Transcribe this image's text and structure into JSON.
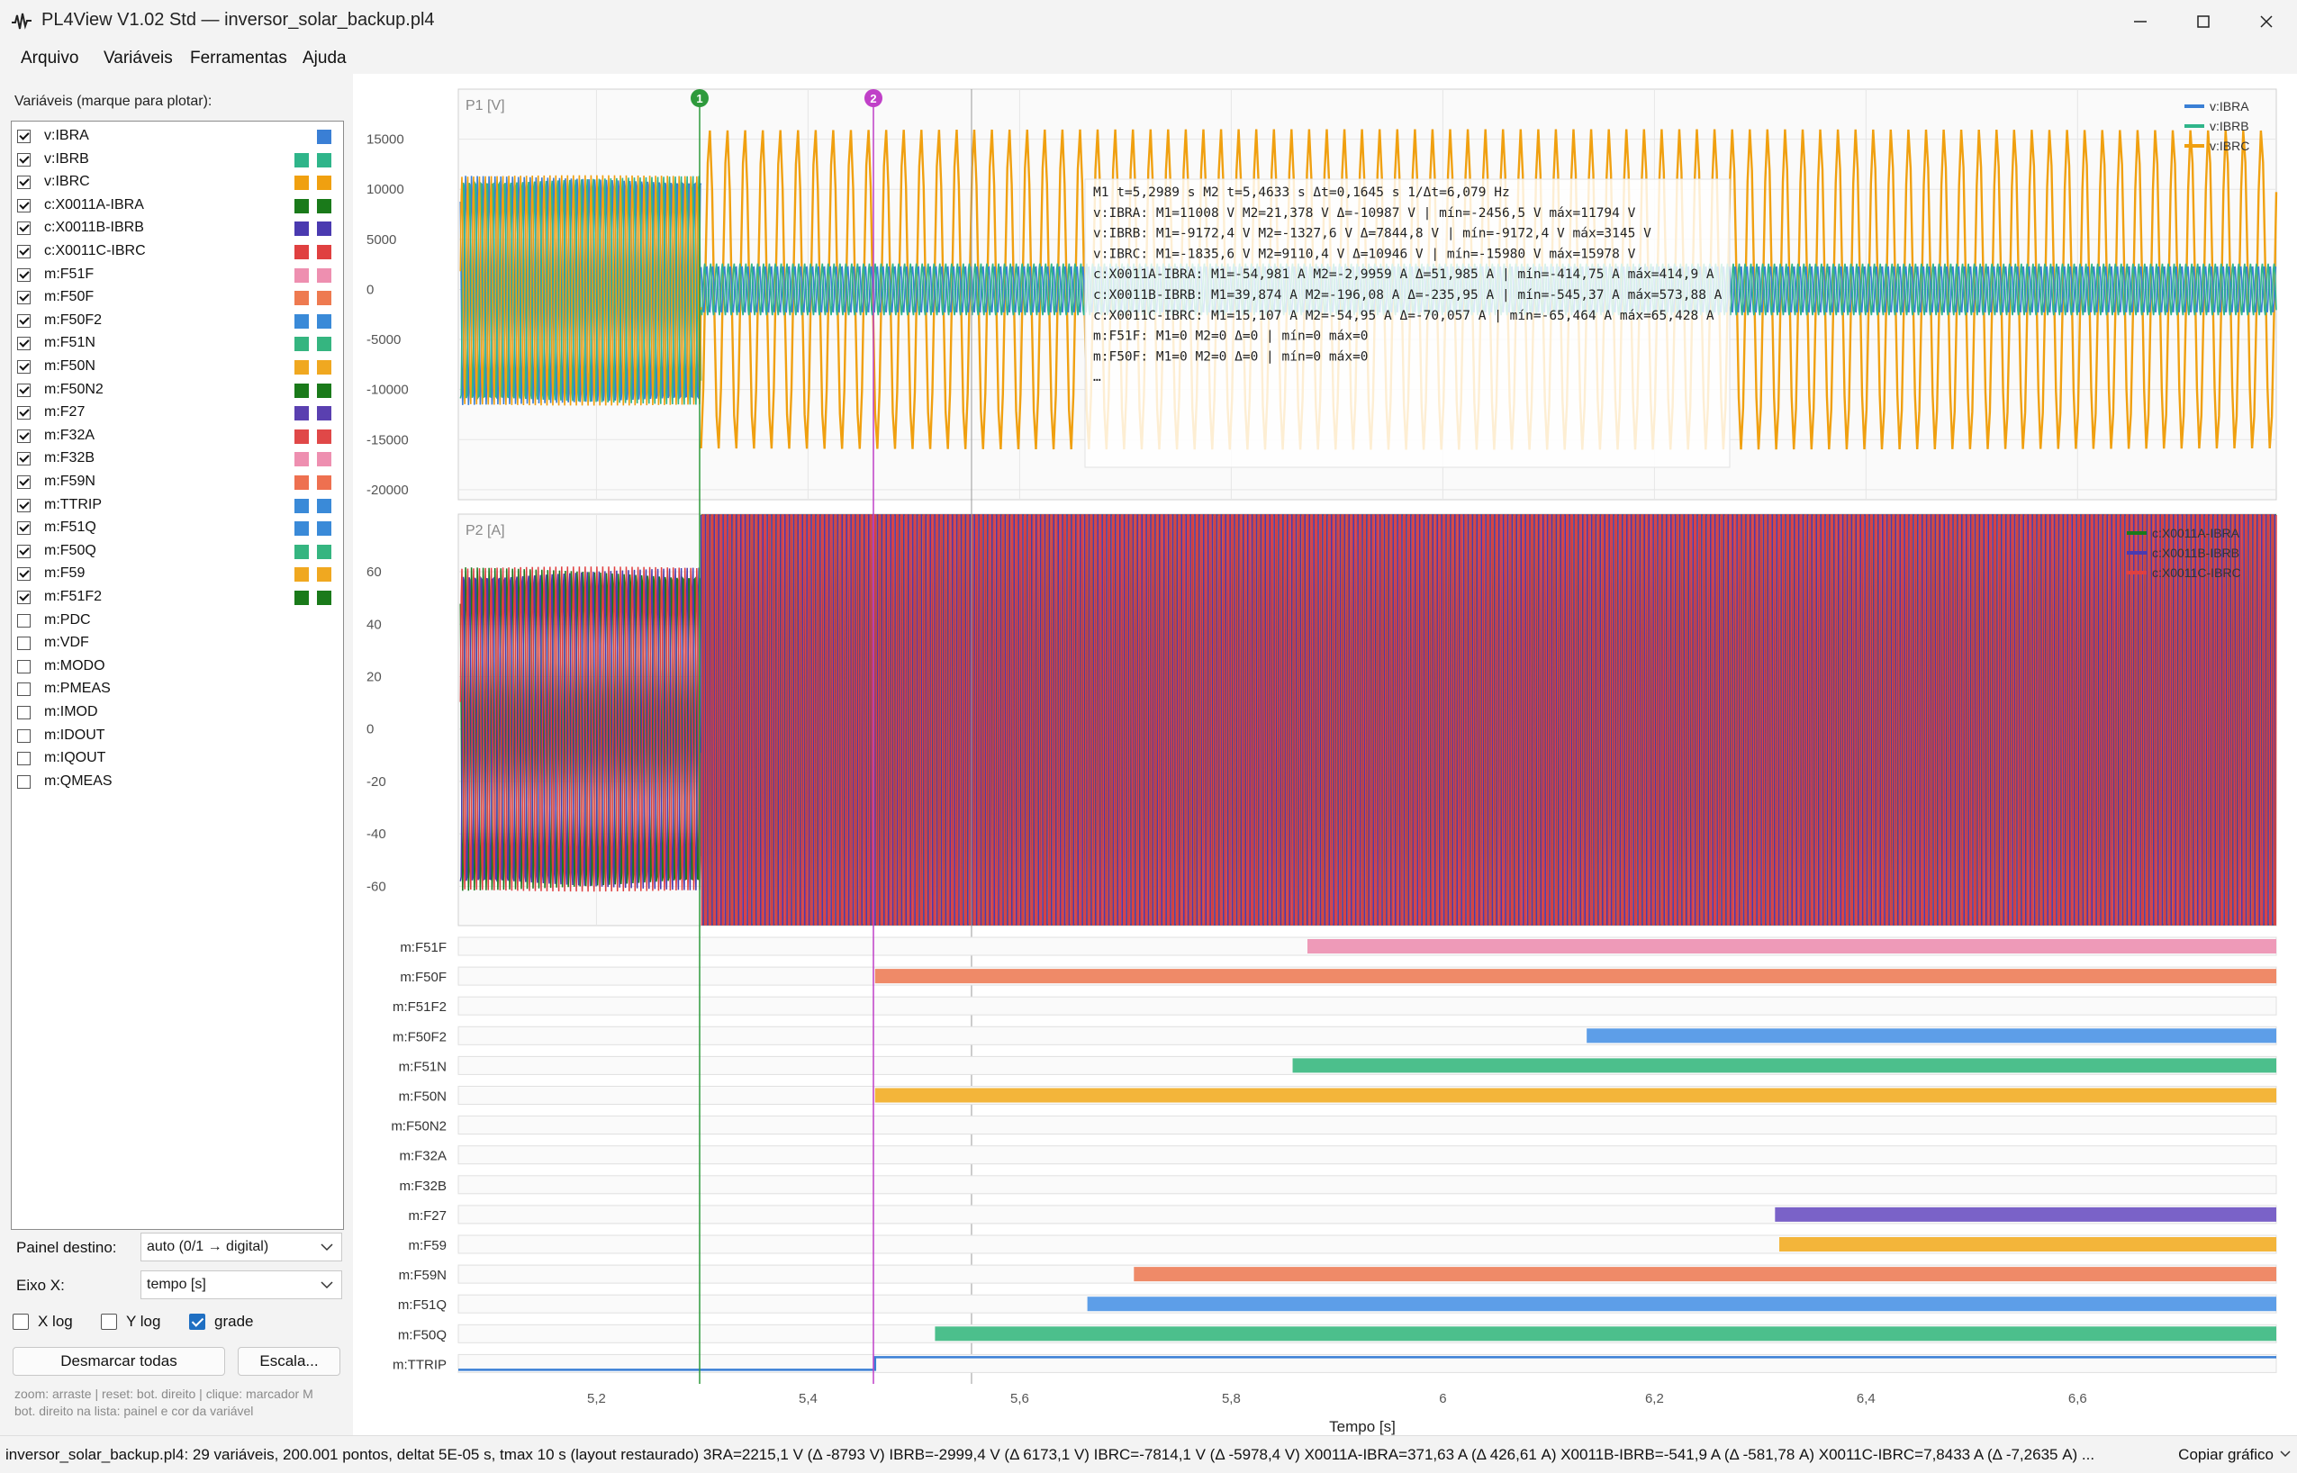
{
  "window": {
    "title": "PL4View V1.02 Std — inversor_solar_backup.pl4"
  },
  "menu": [
    "Arquivo",
    "Variáveis",
    "Ferramentas",
    "Ajuda"
  ],
  "sidebar": {
    "heading": "Variáveis (marque para plotar):",
    "variables": [
      {
        "name": "v:IBRA",
        "checked": true,
        "colors": [
          "#3a7fd5"
        ]
      },
      {
        "name": "v:IBRB",
        "checked": true,
        "colors": [
          "#2fb58a",
          "#2fb58a"
        ]
      },
      {
        "name": "v:IBRC",
        "checked": true,
        "colors": [
          "#f0a010",
          "#f0a010"
        ]
      },
      {
        "name": "c:X0011A-IBRA",
        "checked": true,
        "colors": [
          "#1a7a1a",
          "#1a7a1a"
        ]
      },
      {
        "name": "c:X0011B-IBRB",
        "checked": true,
        "colors": [
          "#4a3ab0",
          "#4a3ab0"
        ]
      },
      {
        "name": "c:X0011C-IBRC",
        "checked": true,
        "colors": [
          "#e04040",
          "#e04040"
        ]
      },
      {
        "name": "m:F51F",
        "checked": true,
        "colors": [
          "#ee8fb0",
          "#ee8fb0"
        ]
      },
      {
        "name": "m:F50F",
        "checked": true,
        "colors": [
          "#ee7a50",
          "#ee7a50"
        ]
      },
      {
        "name": "m:F50F2",
        "checked": true,
        "colors": [
          "#3a8ad8",
          "#3a8ad8"
        ]
      },
      {
        "name": "m:F51N",
        "checked": true,
        "colors": [
          "#35b580",
          "#35b580"
        ]
      },
      {
        "name": "m:F50N",
        "checked": true,
        "colors": [
          "#f0a820",
          "#f0a820"
        ]
      },
      {
        "name": "m:F50N2",
        "checked": true,
        "colors": [
          "#1a7a1a",
          "#1a7a1a"
        ]
      },
      {
        "name": "m:F27",
        "checked": true,
        "colors": [
          "#5a40b0",
          "#5a40b0"
        ]
      },
      {
        "name": "m:F32A",
        "checked": true,
        "colors": [
          "#e04848",
          "#e04848"
        ]
      },
      {
        "name": "m:F32B",
        "checked": true,
        "colors": [
          "#ee8fb0",
          "#ee8fb0"
        ]
      },
      {
        "name": "m:F59N",
        "checked": true,
        "colors": [
          "#ee7050",
          "#ee7050"
        ]
      },
      {
        "name": "m:TTRIP",
        "checked": true,
        "colors": [
          "#3a8ad8",
          "#3a8ad8"
        ]
      },
      {
        "name": "m:F51Q",
        "checked": true,
        "colors": [
          "#3a8ad8",
          "#3a8ad8"
        ]
      },
      {
        "name": "m:F50Q",
        "checked": true,
        "colors": [
          "#35b580",
          "#35b580"
        ]
      },
      {
        "name": "m:F59",
        "checked": true,
        "colors": [
          "#f0a820",
          "#f0a820"
        ]
      },
      {
        "name": "m:F51F2",
        "checked": true,
        "colors": [
          "#1a7a1a",
          "#1a7a1a"
        ]
      },
      {
        "name": "m:PDC",
        "checked": false,
        "colors": []
      },
      {
        "name": "m:VDF",
        "checked": false,
        "colors": []
      },
      {
        "name": "m:MODO",
        "checked": false,
        "colors": []
      },
      {
        "name": "m:PMEAS",
        "checked": false,
        "colors": []
      },
      {
        "name": "m:IMOD",
        "checked": false,
        "colors": []
      },
      {
        "name": "m:IDOUT",
        "checked": false,
        "colors": []
      },
      {
        "name": "m:IQOUT",
        "checked": false,
        "colors": []
      },
      {
        "name": "m:QMEAS",
        "checked": false,
        "colors": []
      }
    ],
    "painel_label": "Painel destino:",
    "painel_value": "auto (0/1 → digital)",
    "eixo_label": "Eixo X:",
    "eixo_value": "tempo [s]",
    "xlog_label": "X log",
    "ylog_label": "Y log",
    "grade_label": "grade",
    "xlog_checked": false,
    "ylog_checked": false,
    "grade_checked": true,
    "desmarcar_label": "Desmarcar todas",
    "escala_label": "Escala...",
    "hint_line1": "zoom: arraste | reset: bot. direito | clique: marcador M",
    "hint_line2": "bot. direito na lista: painel e cor da variável"
  },
  "plot": {
    "panel1": {
      "label": "P1 [V]",
      "yticks": [
        "15000",
        "10000",
        "5000",
        "0",
        "-5000",
        "-10000",
        "-15000",
        "-20000"
      ],
      "legend": [
        "v:IBRA",
        "v:IBRB",
        "v:IBRC"
      ]
    },
    "panel2": {
      "label": "P2 [A]",
      "yticks": [
        "60",
        "40",
        "20",
        "0",
        "-20",
        "-40",
        "-60"
      ],
      "legend": [
        "c:X0011A-IBRA",
        "c:X0011B-IBRB",
        "c:X0011C-IBRC"
      ]
    },
    "digital_rows": [
      {
        "name": "m:F51F",
        "start": 5.872,
        "color": "#ee9ab8"
      },
      {
        "name": "m:F50F",
        "start": 5.4633,
        "color": "#ef8a68"
      },
      {
        "name": "m:F51F2",
        "start": null,
        "color": "#1a7a1a"
      },
      {
        "name": "m:F50F2",
        "start": 6.136,
        "color": "#5d9ee8"
      },
      {
        "name": "m:F51N",
        "start": 5.858,
        "color": "#4cbf8c"
      },
      {
        "name": "m:F50N",
        "start": 5.4633,
        "color": "#f3b53a"
      },
      {
        "name": "m:F50N2",
        "start": null,
        "color": "#1a7a1a"
      },
      {
        "name": "m:F32A",
        "start": null,
        "color": "#e04848"
      },
      {
        "name": "m:F32B",
        "start": null,
        "color": "#ee8fb0"
      },
      {
        "name": "m:F27",
        "start": 6.314,
        "color": "#7a62c8"
      },
      {
        "name": "m:F59",
        "start": 6.318,
        "color": "#f3b53a"
      },
      {
        "name": "m:F59N",
        "start": 5.708,
        "color": "#ef8a68"
      },
      {
        "name": "m:F51Q",
        "start": 5.664,
        "color": "#5d9ee8"
      },
      {
        "name": "m:F50Q",
        "start": 5.52,
        "color": "#4cbf8c"
      },
      {
        "name": "m:TTRIP",
        "start": 5.4633,
        "color": "#3a7fd5"
      }
    ],
    "xticks": [
      "5,2",
      "5,4",
      "5,6",
      "5,8",
      "6",
      "6,2",
      "6,4",
      "6,6"
    ],
    "xlabel": "Tempo [s]",
    "marker1_label": "1",
    "marker2_label": "2",
    "readout": [
      "M1 t=5,2989 s   M2 t=5,4633 s   Δt=0,1645 s   1/Δt=6,079 Hz",
      "v:IBRA:  M1=11008 V  M2=21,378 V  Δ=-10987 V  |  mín=-2456,5 V  máx=11794 V",
      "v:IBRB:  M1=-9172,4 V  M2=-1327,6 V  Δ=7844,8 V  |  mín=-9172,4 V  máx=3145 V",
      "v:IBRC:  M1=-1835,6 V  M2=9110,4 V  Δ=10946 V  |  mín=-15980 V  máx=15978 V",
      "c:X0011A-IBRA:  M1=-54,981 A  M2=-2,9959 A  Δ=51,985 A  |  mín=-414,75 A  máx=414,9 A",
      "c:X0011B-IBRB:  M1=39,874 A  M2=-196,08 A  Δ=-235,95 A  |  mín=-545,37 A  máx=573,88 A",
      "c:X0011C-IBRC:  M1=15,107 A  M2=-54,95 A  Δ=-70,057 A  |  mín=-65,464 A  máx=65,428 A",
      "m:F51F:  M1=0  M2=0  Δ=0  |  mín=0  máx=0",
      "m:F50F:  M1=0  M2=0  Δ=0  |  mín=0  máx=0",
      "…"
    ]
  },
  "status": {
    "text": "inversor_solar_backup.pl4: 29 variáveis, 200.001 pontos, deltat 5E-05 s, tmax 10 s  (layout restaurado)  3RA=2215,1 V (Δ -8793 V)   IBRB=-2999,4 V (Δ 6173,1 V)   IBRC=-7814,1 V (Δ -5978,4 V)   X0011A-IBRA=371,63 A (Δ 426,61 A)   X0011B-IBRB=-541,9 A (Δ -581,78 A)   X0011C-IBRC=7,8433 A (Δ -7,2635 A) ...",
    "copy_label": "Copiar gráfico"
  }
}
